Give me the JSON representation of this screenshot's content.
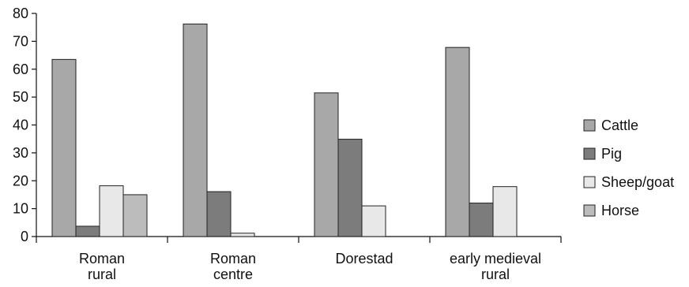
{
  "chart_data": {
    "type": "bar",
    "categories": [
      [
        "Roman",
        "rural"
      ],
      [
        "Roman",
        "centre"
      ],
      [
        "Dorestad"
      ],
      [
        "early medieval",
        "rural"
      ]
    ],
    "series": [
      {
        "name": "Cattle",
        "values": [
          63.5,
          76.2,
          51.5,
          67.8
        ],
        "color": "#a8a8a8"
      },
      {
        "name": "Pig",
        "values": [
          3.7,
          16.1,
          34.9,
          12.0
        ],
        "color": "#7c7c7c"
      },
      {
        "name": "Sheep/goat",
        "values": [
          18.2,
          1.2,
          11.0,
          17.9
        ],
        "color": "#e8e8e8"
      },
      {
        "name": "Horse",
        "values": [
          15.0,
          0,
          0,
          0
        ],
        "color": "#bcbcbc"
      }
    ],
    "ylim": [
      0,
      80
    ],
    "yticks": [
      0,
      10,
      20,
      30,
      40,
      50,
      60,
      70,
      80
    ],
    "legend_position": "right",
    "grid": false,
    "title": "",
    "xlabel": "",
    "ylabel": ""
  }
}
